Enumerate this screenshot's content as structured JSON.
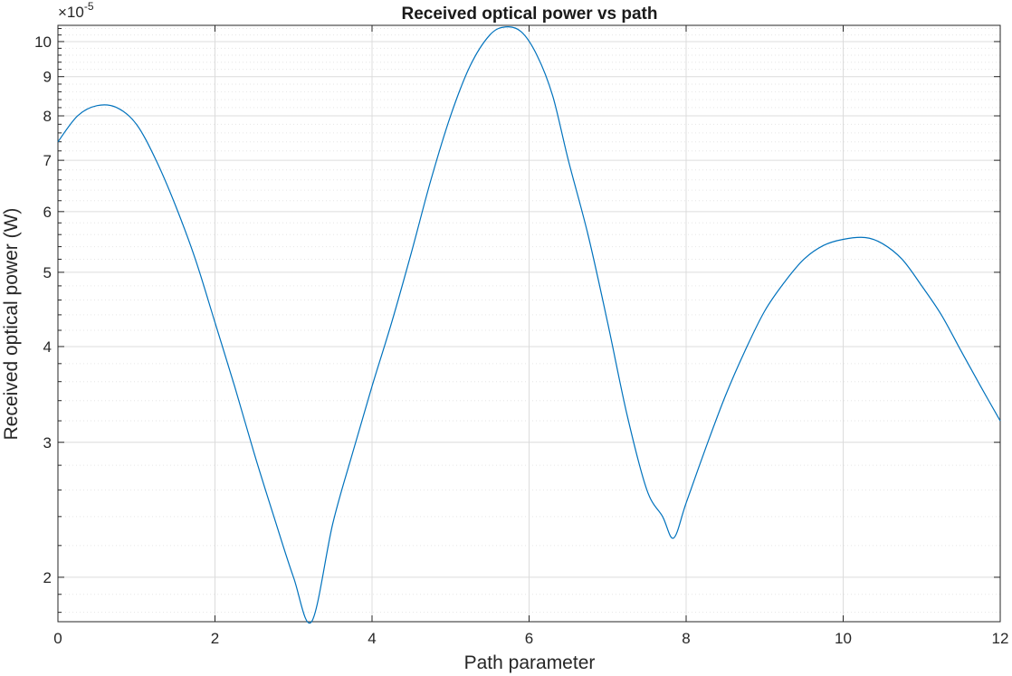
{
  "chart_data": {
    "type": "line",
    "title": "Received optical power vs path",
    "xlabel": "Path parameter",
    "ylabel": "Received optical power (W)",
    "exponent_base": "×10",
    "exponent_power": "-5",
    "xlim": [
      0,
      12
    ],
    "ylim": [
      1.75,
      10.5
    ],
    "yscale": "log",
    "grid": true,
    "minor_grid": true,
    "x_ticks": [
      0,
      2,
      4,
      6,
      8,
      10,
      12
    ],
    "x_tick_labels": [
      "0",
      "2",
      "4",
      "6",
      "8",
      "10",
      "12"
    ],
    "y_ticks": [
      2,
      3,
      4,
      5,
      6,
      7,
      8,
      9,
      10
    ],
    "y_tick_labels": [
      "2",
      "3",
      "4",
      "5",
      "6",
      "7",
      "8",
      "9",
      "10"
    ],
    "y_minor_ticks": [
      1.8,
      1.9,
      2.2,
      2.4,
      2.6,
      2.8,
      3.2,
      3.4,
      3.6,
      3.8,
      4.2,
      4.4,
      4.6,
      4.8,
      5.2,
      5.4,
      5.6,
      5.8,
      6.2,
      6.4,
      6.6,
      6.8,
      7.2,
      7.4,
      7.6,
      7.8,
      8.2,
      8.4,
      8.6,
      8.8,
      9.2,
      9.4,
      9.6,
      9.8,
      10.2,
      10.4
    ],
    "colors": {
      "line": "#0072bd",
      "grid": "#dcdcdc",
      "minor_grid": "#e6e6e6",
      "axis": "#262626"
    },
    "series": [
      {
        "x": [
          0,
          0.25,
          0.5,
          0.75,
          1,
          1.25,
          1.5,
          1.75,
          2,
          2.25,
          2.5,
          2.75,
          3,
          3.23,
          3.5,
          3.75,
          4,
          4.25,
          4.5,
          4.75,
          5,
          5.25,
          5.5,
          5.7,
          5.9,
          6.1,
          6.3,
          6.5,
          6.75,
          7,
          7.25,
          7.5,
          7.7,
          7.84,
          8,
          8.25,
          8.5,
          8.75,
          9,
          9.25,
          9.5,
          9.75,
          10,
          10.28,
          10.5,
          10.75,
          11,
          11.25,
          11.5,
          11.75,
          12
        ],
        "values": [
          7.4,
          8.0,
          8.25,
          8.2,
          7.8,
          7.0,
          6.1,
          5.2,
          4.3,
          3.55,
          2.9,
          2.4,
          2.0,
          1.75,
          2.35,
          2.9,
          3.55,
          4.3,
          5.3,
          6.6,
          8.0,
          9.3,
          10.2,
          10.45,
          10.3,
          9.6,
          8.5,
          7.0,
          5.6,
          4.3,
          3.25,
          2.6,
          2.4,
          2.25,
          2.5,
          2.95,
          3.45,
          3.95,
          4.45,
          4.85,
          5.2,
          5.42,
          5.52,
          5.55,
          5.45,
          5.2,
          4.8,
          4.4,
          3.95,
          3.55,
          3.2
        ]
      }
    ]
  }
}
